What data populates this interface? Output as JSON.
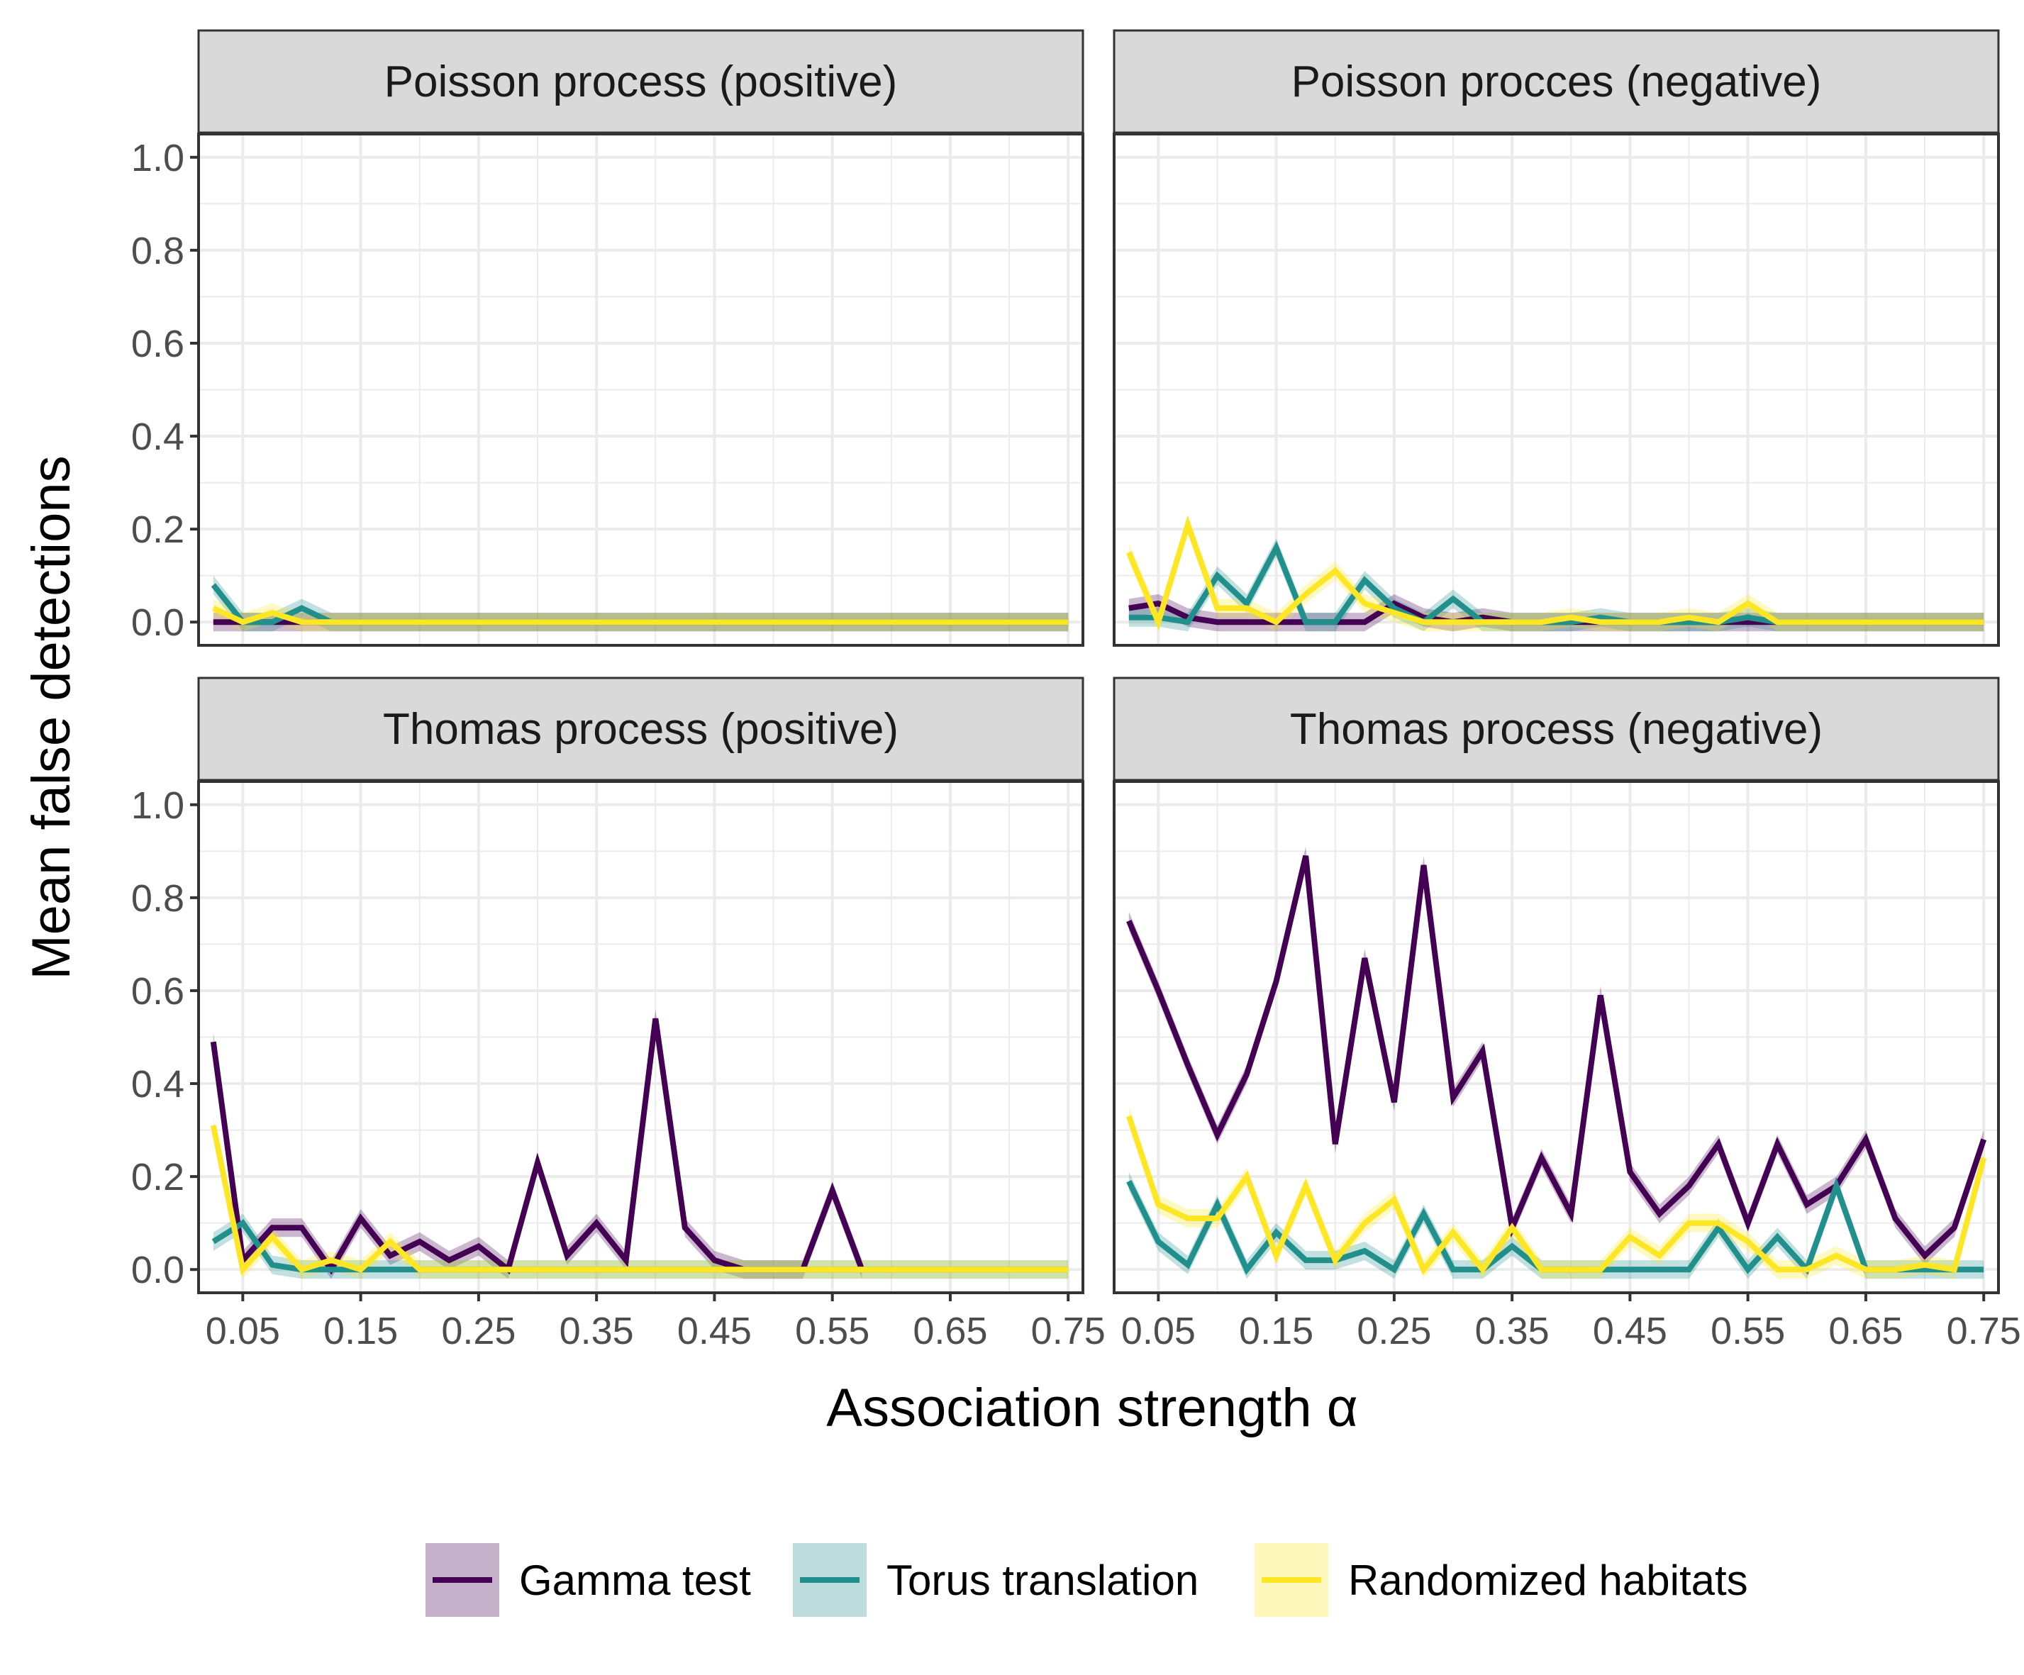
{
  "chart_data": {
    "type": "line",
    "facets": [
      {
        "title": "Poisson process (positive)",
        "series": [
          {
            "name": "Gamma test",
            "x": [
              0.025,
              0.05,
              0.075,
              0.1,
              0.125,
              0.15,
              0.175,
              0.2,
              0.225,
              0.25,
              0.275,
              0.3,
              0.325,
              0.35,
              0.375,
              0.4,
              0.425,
              0.45,
              0.475,
              0.5,
              0.525,
              0.55,
              0.575,
              0.6,
              0.625,
              0.65,
              0.675,
              0.7,
              0.725,
              0.75
            ],
            "y": [
              0,
              0,
              0,
              0,
              0,
              0,
              0,
              0,
              0,
              0,
              0,
              0,
              0,
              0,
              0,
              0,
              0,
              0,
              0,
              0,
              0,
              0,
              0,
              0,
              0,
              0,
              0,
              0,
              0,
              0
            ]
          },
          {
            "name": "Torus translation",
            "x": [
              0.025,
              0.05,
              0.075,
              0.1,
              0.125,
              0.15,
              0.175,
              0.2,
              0.225,
              0.25,
              0.275,
              0.3,
              0.325,
              0.35,
              0.375,
              0.4,
              0.425,
              0.45,
              0.475,
              0.5,
              0.525,
              0.55,
              0.575,
              0.6,
              0.625,
              0.65,
              0.675,
              0.7,
              0.725,
              0.75
            ],
            "y": [
              0.08,
              0,
              0,
              0.03,
              0,
              0,
              0,
              0,
              0,
              0,
              0,
              0,
              0,
              0,
              0,
              0,
              0,
              0,
              0,
              0,
              0,
              0,
              0,
              0,
              0,
              0,
              0,
              0,
              0,
              0
            ]
          },
          {
            "name": "Randomized habitats",
            "x": [
              0.025,
              0.05,
              0.075,
              0.1,
              0.125,
              0.15,
              0.175,
              0.2,
              0.225,
              0.25,
              0.275,
              0.3,
              0.325,
              0.35,
              0.375,
              0.4,
              0.425,
              0.45,
              0.475,
              0.5,
              0.525,
              0.55,
              0.575,
              0.6,
              0.625,
              0.65,
              0.675,
              0.7,
              0.725,
              0.75
            ],
            "y": [
              0.03,
              0,
              0.02,
              0,
              0,
              0,
              0,
              0,
              0,
              0,
              0,
              0,
              0,
              0,
              0,
              0,
              0,
              0,
              0,
              0,
              0,
              0,
              0,
              0,
              0,
              0,
              0,
              0,
              0,
              0
            ]
          }
        ]
      },
      {
        "title": "Poisson procces (negative)",
        "series": [
          {
            "name": "Gamma test",
            "x": [
              0.025,
              0.05,
              0.075,
              0.1,
              0.125,
              0.15,
              0.175,
              0.2,
              0.225,
              0.25,
              0.275,
              0.3,
              0.325,
              0.35,
              0.375,
              0.4,
              0.425,
              0.45,
              0.475,
              0.5,
              0.525,
              0.55,
              0.575,
              0.6,
              0.625,
              0.65,
              0.675,
              0.7,
              0.725,
              0.75
            ],
            "y": [
              0.03,
              0.04,
              0.01,
              0,
              0,
              0,
              0,
              0,
              0,
              0.04,
              0.01,
              0,
              0.01,
              0,
              0,
              0,
              0,
              0,
              0,
              0,
              0,
              0,
              0,
              0,
              0,
              0,
              0,
              0,
              0,
              0
            ]
          },
          {
            "name": "Torus translation",
            "x": [
              0.025,
              0.05,
              0.075,
              0.1,
              0.125,
              0.15,
              0.175,
              0.2,
              0.225,
              0.25,
              0.275,
              0.3,
              0.325,
              0.35,
              0.375,
              0.4,
              0.425,
              0.45,
              0.475,
              0.5,
              0.525,
              0.55,
              0.575,
              0.6,
              0.625,
              0.65,
              0.675,
              0.7,
              0.725,
              0.75
            ],
            "y": [
              0.01,
              0.01,
              0,
              0.1,
              0.04,
              0.16,
              0,
              0,
              0.09,
              0.03,
              0,
              0.05,
              0,
              0,
              0,
              0,
              0.01,
              0,
              0,
              0,
              0,
              0.01,
              0,
              0,
              0,
              0,
              0,
              0,
              0,
              0
            ]
          },
          {
            "name": "Randomized habitats",
            "x": [
              0.025,
              0.05,
              0.075,
              0.1,
              0.125,
              0.15,
              0.175,
              0.2,
              0.225,
              0.25,
              0.275,
              0.3,
              0.325,
              0.35,
              0.375,
              0.4,
              0.425,
              0.45,
              0.475,
              0.5,
              0.525,
              0.55,
              0.575,
              0.6,
              0.625,
              0.65,
              0.675,
              0.7,
              0.725,
              0.75
            ],
            "y": [
              0.15,
              0,
              0.21,
              0.03,
              0.03,
              0,
              0.06,
              0.11,
              0.04,
              0.02,
              0,
              0,
              0,
              0,
              0,
              0.01,
              0,
              0,
              0,
              0.01,
              0,
              0.04,
              0,
              0,
              0,
              0,
              0,
              0,
              0,
              0
            ]
          }
        ]
      },
      {
        "title": "Thomas process (positive)",
        "series": [
          {
            "name": "Gamma test",
            "x": [
              0.025,
              0.05,
              0.075,
              0.1,
              0.125,
              0.15,
              0.175,
              0.2,
              0.225,
              0.25,
              0.275,
              0.3,
              0.325,
              0.35,
              0.375,
              0.4,
              0.425,
              0.45,
              0.475,
              0.5,
              0.525,
              0.55,
              0.575
            ],
            "y": [
              0.49,
              0.02,
              0.09,
              0.09,
              0,
              0.11,
              0.03,
              0.06,
              0.02,
              0.05,
              0,
              0.23,
              0.03,
              0.1,
              0.02,
              0.54,
              0.09,
              0.02,
              0,
              0,
              0,
              0.17,
              0
            ]
          },
          {
            "name": "Torus translation",
            "x": [
              0.025,
              0.05,
              0.075,
              0.1,
              0.125,
              0.15,
              0.175,
              0.2,
              0.225,
              0.25,
              0.275,
              0.3,
              0.325,
              0.35,
              0.375,
              0.4,
              0.425,
              0.45,
              0.475,
              0.5,
              0.525,
              0.55,
              0.575,
              0.6,
              0.625,
              0.65,
              0.675,
              0.7,
              0.725,
              0.75
            ],
            "y": [
              0.06,
              0.1,
              0.01,
              0,
              0,
              0,
              0,
              0,
              0,
              0,
              0,
              0,
              0,
              0,
              0,
              0,
              0,
              0,
              0,
              0,
              0,
              0,
              0,
              0,
              0,
              0,
              0,
              0,
              0,
              0
            ]
          },
          {
            "name": "Randomized habitats",
            "x": [
              0.025,
              0.05,
              0.075,
              0.1,
              0.125,
              0.15,
              0.175,
              0.2,
              0.225,
              0.25,
              0.275,
              0.3,
              0.325,
              0.35,
              0.375,
              0.4,
              0.425,
              0.45,
              0.475,
              0.5,
              0.525,
              0.55,
              0.575,
              0.6,
              0.625,
              0.65,
              0.675,
              0.7,
              0.725,
              0.75
            ],
            "y": [
              0.31,
              0,
              0.07,
              0,
              0.02,
              0,
              0.06,
              0,
              0,
              0,
              0,
              0,
              0,
              0,
              0,
              0,
              0,
              0,
              0,
              0,
              0,
              0,
              0,
              0,
              0,
              0,
              0,
              0,
              0,
              0
            ]
          }
        ]
      },
      {
        "title": "Thomas process (negative)",
        "series": [
          {
            "name": "Gamma test",
            "x": [
              0.025,
              0.05,
              0.075,
              0.1,
              0.125,
              0.15,
              0.175,
              0.2,
              0.225,
              0.25,
              0.275,
              0.3,
              0.325,
              0.35,
              0.375,
              0.4,
              0.425,
              0.45,
              0.475,
              0.5,
              0.525,
              0.55,
              0.575,
              0.6,
              0.625,
              0.65,
              0.675,
              0.7,
              0.725,
              0.75
            ],
            "y": [
              0.75,
              0.6,
              0.44,
              0.29,
              0.42,
              0.62,
              0.89,
              0.27,
              0.67,
              0.36,
              0.87,
              0.37,
              0.47,
              0.09,
              0.24,
              0.12,
              0.59,
              0.21,
              0.12,
              0.18,
              0.27,
              0.1,
              0.27,
              0.14,
              0.18,
              0.28,
              0.11,
              0.03,
              0.09,
              0.28
            ]
          },
          {
            "name": "Torus translation",
            "x": [
              0.025,
              0.05,
              0.075,
              0.1,
              0.125,
              0.15,
              0.175,
              0.2,
              0.225,
              0.25,
              0.275,
              0.3,
              0.325,
              0.35,
              0.375,
              0.4,
              0.425,
              0.45,
              0.475,
              0.5,
              0.525,
              0.55,
              0.575,
              0.6,
              0.625,
              0.65,
              0.675,
              0.7,
              0.725,
              0.75
            ],
            "y": [
              0.19,
              0.06,
              0.01,
              0.14,
              0,
              0.08,
              0.02,
              0.02,
              0.04,
              0,
              0.12,
              0,
              0,
              0.05,
              0,
              0,
              0,
              0,
              0,
              0,
              0.09,
              0,
              0.07,
              0,
              0.18,
              0,
              0,
              0,
              0,
              0
            ]
          },
          {
            "name": "Randomized habitats",
            "x": [
              0.025,
              0.05,
              0.075,
              0.1,
              0.125,
              0.15,
              0.175,
              0.2,
              0.225,
              0.25,
              0.275,
              0.3,
              0.325,
              0.35,
              0.375,
              0.4,
              0.425,
              0.45,
              0.475,
              0.5,
              0.525,
              0.55,
              0.575,
              0.6,
              0.625,
              0.65,
              0.675,
              0.7,
              0.725,
              0.75
            ],
            "y": [
              0.33,
              0.14,
              0.11,
              0.11,
              0.2,
              0.03,
              0.18,
              0.02,
              0.1,
              0.15,
              0,
              0.08,
              0,
              0.09,
              0,
              0,
              0,
              0.07,
              0.03,
              0.1,
              0.1,
              0.06,
              0,
              0,
              0.03,
              0,
              0,
              0.01,
              0,
              0.24
            ]
          }
        ]
      }
    ],
    "xlabel": "Association strength α",
    "ylabel": "Mean false detections",
    "xlim": [
      0.0125,
      0.7625
    ],
    "ylim": [
      -0.05,
      1.05
    ],
    "xticks": [
      0.05,
      0.15,
      0.25,
      0.35,
      0.45,
      0.55,
      0.65,
      0.75
    ],
    "xtick_labels": [
      "0.05",
      "0.15",
      "0.25",
      "0.35",
      "0.45",
      "0.55",
      "0.65",
      "0.75"
    ],
    "yticks": [
      0,
      0.2,
      0.4,
      0.6,
      0.8,
      1.0
    ],
    "ytick_labels": [
      "0.0",
      "0.2",
      "0.4",
      "0.6",
      "0.8",
      "1.0"
    ],
    "legend": {
      "position": "bottom",
      "items": [
        {
          "label": "Gamma test",
          "color": "#440154"
        },
        {
          "label": "Torus translation",
          "color": "#21908C"
        },
        {
          "label": "Randomized habitats",
          "color": "#FDE725"
        }
      ]
    },
    "grid": true
  }
}
